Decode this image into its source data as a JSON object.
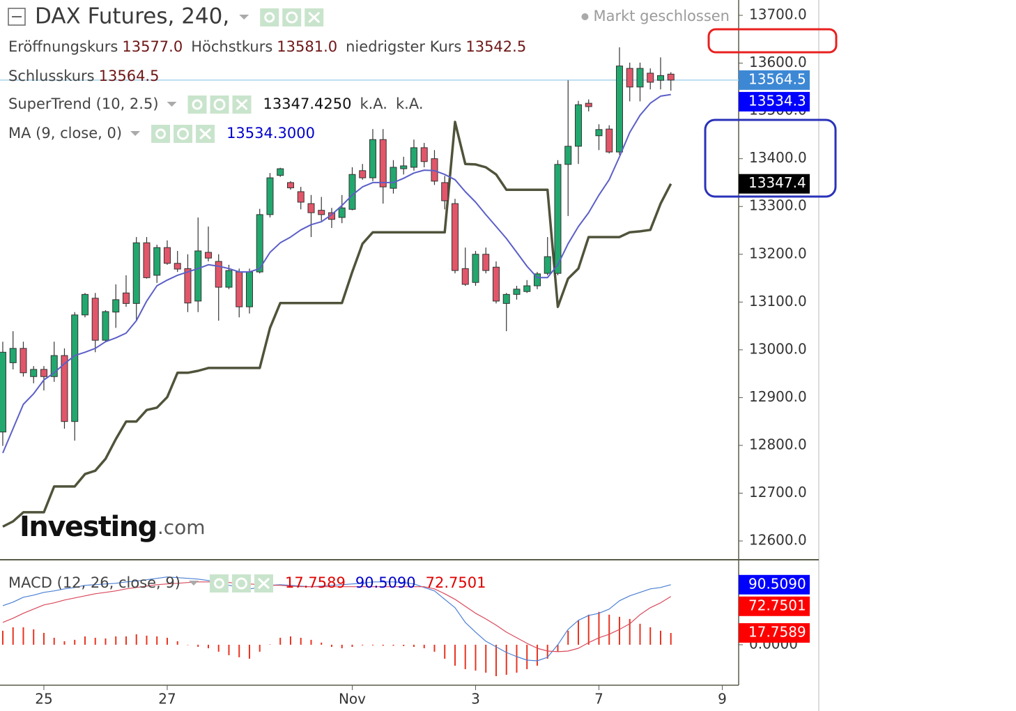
{
  "chart_data": {
    "type": "candlestick",
    "title": "DAX Futures, 240,",
    "status": "Markt geschlossen",
    "ohlc_names": [
      "Eröffnungskurs",
      "Höchstkurs",
      "niedrigster Kurs",
      "Schlusskurs"
    ],
    "ohlc_value_labels": [
      "13577.0",
      "13581.0",
      "13542.5",
      "13564.5"
    ],
    "categories": [
      null,
      null,
      null,
      null,
      "25",
      null,
      null,
      null,
      null,
      null,
      null,
      null,
      null,
      null,
      null,
      null,
      "27",
      null,
      null,
      null,
      null,
      null,
      null,
      null,
      null,
      null,
      null,
      null,
      null,
      null,
      null,
      null,
      null,
      null,
      "Nov",
      null,
      null,
      null,
      null,
      null,
      null,
      null,
      null,
      null,
      null,
      null,
      "3",
      null,
      null,
      null,
      null,
      null,
      null,
      null,
      null,
      null,
      null,
      null,
      "7",
      null,
      null,
      null,
      null,
      null,
      null,
      null,
      null,
      null,
      null,
      null,
      "9",
      null
    ],
    "open": [
      12828,
      12973,
      13003,
      12944,
      12959,
      12944,
      12988,
      12850,
      13073,
      13108,
      13020,
      13079,
      13119,
      13097,
      13224,
      13156,
      13214,
      13181,
      13170,
      13102,
      13204,
      13185,
      13131,
      13163,
      13090,
      13163,
      13283,
      13365,
      13350,
      13331,
      13306,
      13292,
      13287,
      13277,
      13294,
      13375,
      13360,
      13440,
      13338,
      13379,
      13382,
      13423,
      13400,
      13350,
      13306,
      13170,
      13141,
      13200,
      13173,
      13097,
      13116,
      13122,
      13134,
      13160,
      13160,
      13388,
      13426,
      13516,
      13448,
      13462,
      13414,
      13589,
      13550,
      13579,
      13564,
      13577,
      null,
      null,
      null,
      null,
      null,
      null
    ],
    "high": [
      13017,
      13039,
      13017,
      12966,
      12966,
      13017,
      13003,
      13079,
      13119,
      13119,
      13083,
      13137,
      13156,
      13236,
      13236,
      13220,
      13229,
      13207,
      13200,
      13277,
      13258,
      13200,
      13178,
      13170,
      13170,
      13295,
      13370,
      13381,
      13353,
      13341,
      13324,
      13320,
      13297,
      13324,
      13382,
      13389,
      13462,
      13462,
      13397,
      13404,
      13440,
      13433,
      13418,
      13364,
      13316,
      13214,
      13207,
      13214,
      13185,
      13119,
      13134,
      13146,
      13163,
      13236,
      13397,
      13564,
      13521,
      13524,
      13472,
      13470,
      13633,
      13601,
      13601,
      13589,
      13612,
      13581,
      null,
      null,
      null,
      null,
      null,
      null
    ],
    "low": [
      12799,
      12959,
      12944,
      12930,
      12915,
      12933,
      12835,
      12810,
      13068,
      12995,
      13017,
      13046,
      13090,
      13061,
      13149,
      13140,
      13178,
      13163,
      13079,
      13079,
      13185,
      13061,
      13127,
      13068,
      13076,
      13160,
      13277,
      13362,
      13335,
      13294,
      13236,
      13270,
      13255,
      13265,
      13292,
      13356,
      13353,
      13306,
      13327,
      13367,
      13375,
      13382,
      13345,
      13294,
      13160,
      13134,
      13134,
      13160,
      13097,
      13039,
      13105,
      13119,
      13127,
      13156,
      13156,
      13280,
      13389,
      13499,
      13418,
      13411,
      13408,
      13520,
      13520,
      13545,
      13545,
      13542.5,
      null,
      null,
      null,
      null,
      null,
      null
    ],
    "close": [
      12995,
      13003,
      12952,
      12959,
      12944,
      12988,
      12850,
      13073,
      13116,
      13020,
      13080,
      13105,
      13097,
      13224,
      13151,
      13214,
      13181,
      13169,
      13098,
      13207,
      13192,
      13131,
      13166,
      13090,
      13163,
      13283,
      13360,
      13379,
      13339,
      13309,
      13287,
      13283,
      13273,
      13297,
      13367,
      13360,
      13440,
      13341,
      13382,
      13385,
      13423,
      13394,
      13353,
      13312,
      13166,
      13137,
      13200,
      13166,
      13102,
      13116,
      13127,
      13134,
      13159,
      13195,
      13388,
      13426,
      13513,
      13509,
      13461,
      13414,
      13594,
      13550,
      13589,
      13560,
      13574,
      13564.5,
      null,
      null,
      null,
      null,
      null,
      null
    ],
    "up_color": "#22a86e",
    "down_color": "#e2566a",
    "ylim": [
      12560.7,
      13732.1
    ],
    "yticks": [
      {
        "value": 12600,
        "label": "12600.0"
      },
      {
        "value": 12700,
        "label": "12700.0"
      },
      {
        "value": 12800,
        "label": "12800.0"
      },
      {
        "value": 12900,
        "label": "12900.0"
      },
      {
        "value": 13000,
        "label": "13000.0"
      },
      {
        "value": 13100,
        "label": "13100.0"
      },
      {
        "value": 13200,
        "label": "13200.0"
      },
      {
        "value": 13300,
        "label": "13300.0"
      },
      {
        "value": 13400,
        "label": "13400.0"
      },
      {
        "value": 13500,
        "label": "13500.0"
      },
      {
        "value": 13600,
        "label": "13600.0"
      },
      {
        "value": 13700,
        "label": "13700.0"
      }
    ],
    "last_price_line_color": "#a8d4ec",
    "series": [
      {
        "name": "SuperTrend (10, 2.5)",
        "color": "#50533a",
        "legend_label": "13347.4250",
        "legend_color": "#111111",
        "extra_labels": [
          "k.A.",
          "k.A."
        ],
        "values": [
          12630,
          12641,
          12660,
          12660,
          12660,
          12714,
          12714,
          12714,
          12740,
          12747,
          12772,
          12813,
          12850,
          12850,
          12874,
          12879,
          12901,
          12952,
          12952,
          12956,
          12962,
          12962,
          12962,
          12962,
          12962,
          12962,
          13046,
          13098,
          13098,
          13098,
          13098,
          13098,
          13098,
          13098,
          13163,
          13222,
          13246,
          13246,
          13246,
          13246,
          13246,
          13246,
          13246,
          13246,
          13477,
          13389,
          13388,
          13382,
          13367,
          13335,
          13335,
          13335,
          13335,
          13335,
          13090,
          13149,
          13170,
          13236,
          13236,
          13236,
          13236,
          13246,
          13248,
          13251,
          13306,
          13347.425,
          null,
          null,
          null,
          null,
          null,
          null
        ]
      },
      {
        "name": "MA (9, close, 0)",
        "color": "#5b5fc7",
        "legend_label": "13534.3000",
        "legend_color": "#0000cc",
        "values": [
          12784,
          12835,
          12886,
          12908,
          12937,
          12952,
          12971,
          12988,
          12995,
          13003,
          13017,
          13025,
          13035,
          13061,
          13102,
          13134,
          13146,
          13156,
          13163,
          13170,
          13178,
          13175,
          13170,
          13163,
          13163,
          13170,
          13204,
          13224,
          13236,
          13251,
          13262,
          13268,
          13283,
          13302,
          13324,
          13341,
          13350,
          13350,
          13350,
          13359,
          13370,
          13376,
          13375,
          13367,
          13356,
          13331,
          13309,
          13283,
          13258,
          13233,
          13204,
          13175,
          13151,
          13151,
          13178,
          13222,
          13258,
          13287,
          13324,
          13356,
          13404,
          13455,
          13491,
          13516,
          13531,
          13534.3,
          null,
          null,
          null,
          null,
          null,
          null
        ]
      }
    ],
    "price_badges": [
      {
        "value": 13564.5,
        "color": "#3d88d4"
      },
      {
        "value": 13534.3,
        "color": "#0000ff"
      },
      {
        "value": 13347.425,
        "label": "13347.4",
        "color": "#000000"
      }
    ],
    "watermark": [
      "Investing",
      ".com"
    ],
    "macd": {
      "title": "MACD (12, 26, close, 9)",
      "ylim": [
        -61,
        126
      ],
      "yticks": [
        {
          "value": 0,
          "label": "0.0000"
        }
      ],
      "series": [
        {
          "type": "bar",
          "color": "#e8331f",
          "legend_label": "17.7589",
          "legend_color": "#e00000",
          "values": [
            21.1,
            26.3,
            26.3,
            23.2,
            17.9,
            10.5,
            5.3,
            7.4,
            12.6,
            10.5,
            9.5,
            12.6,
            12.6,
            15.8,
            13.7,
            12.6,
            10.5,
            5.3,
            0,
            -3.2,
            -5.3,
            -10.5,
            -15.8,
            -18.9,
            -21.1,
            -10.5,
            0.5,
            10.5,
            12.6,
            10.5,
            7.4,
            3.2,
            -3.2,
            -5.3,
            -3.2,
            -1,
            -1,
            -1.5,
            -1.5,
            -2,
            -3.2,
            -5.3,
            -10.5,
            -21.1,
            -31.6,
            -36.8,
            -38.9,
            -42.1,
            -47.4,
            -45.3,
            -42.1,
            -36.8,
            -31.6,
            -21.1,
            -10.5,
            21.1,
            36.8,
            45.3,
            49.5,
            45.3,
            42.1,
            38.9,
            31.6,
            26.3,
            21.1,
            17.7589,
            null,
            null,
            null,
            null,
            null,
            null
          ]
        },
        {
          "type": "line",
          "color": "#4a7fd4",
          "legend_label": "90.5090",
          "legend_color": "#0000cc",
          "values": [
            58.9,
            64.2,
            71.6,
            74.7,
            78.9,
            81.1,
            84.2,
            86.3,
            89.5,
            90.5,
            91.6,
            92.6,
            94.7,
            95.8,
            97.9,
            100,
            102.1,
            101.1,
            100,
            98.9,
            96.8,
            93.7,
            89.5,
            87.4,
            84.2,
            86.3,
            89.5,
            90.5,
            89.5,
            88.4,
            87.4,
            88.4,
            89.5,
            90.5,
            91.6,
            92.6,
            94.7,
            94.7,
            94.7,
            93.7,
            91.6,
            86.3,
            81.1,
            68.4,
            55.8,
            33.7,
            18.9,
            5.3,
            -3.2,
            -11.6,
            -17.9,
            -23.2,
            -24.2,
            -18.9,
            0,
            23.2,
            36.8,
            44.2,
            47.4,
            53.7,
            66.3,
            73.7,
            78.9,
            84.2,
            86.3,
            90.509,
            null,
            null,
            null,
            null,
            null,
            null
          ]
        },
        {
          "type": "line",
          "color": "#d9495b",
          "legend_label": "72.7501",
          "legend_color": "#e00000",
          "values": [
            33.7,
            40,
            47.4,
            53.7,
            60,
            63.2,
            67.4,
            70.5,
            73.7,
            76.8,
            78.9,
            81.1,
            84.2,
            86.3,
            88.4,
            90.5,
            91.6,
            92.6,
            93.7,
            94.7,
            94.7,
            94.7,
            93.7,
            92.6,
            91.6,
            90.5,
            89.5,
            89.5,
            88.4,
            87.4,
            87.4,
            87.4,
            87.4,
            87.4,
            87.4,
            87.4,
            87.4,
            87.4,
            87.4,
            87.4,
            87.4,
            87.4,
            84.2,
            76.8,
            68.4,
            57.9,
            47.4,
            38.9,
            29.5,
            18.9,
            10.5,
            2.1,
            -5.3,
            -9.5,
            -10.5,
            -9.5,
            -5.3,
            3.2,
            10.5,
            15.8,
            23.2,
            31.6,
            45.3,
            55.8,
            63.2,
            72.7501,
            null,
            null,
            null,
            null,
            null,
            null
          ]
        }
      ],
      "badges": [
        {
          "value": 90.509,
          "label": "90.5090",
          "color": "#0000ff"
        },
        {
          "value": 72.7501,
          "color": "#ff0000"
        },
        {
          "value": 17.7589,
          "color": "#ff0000"
        }
      ]
    }
  }
}
